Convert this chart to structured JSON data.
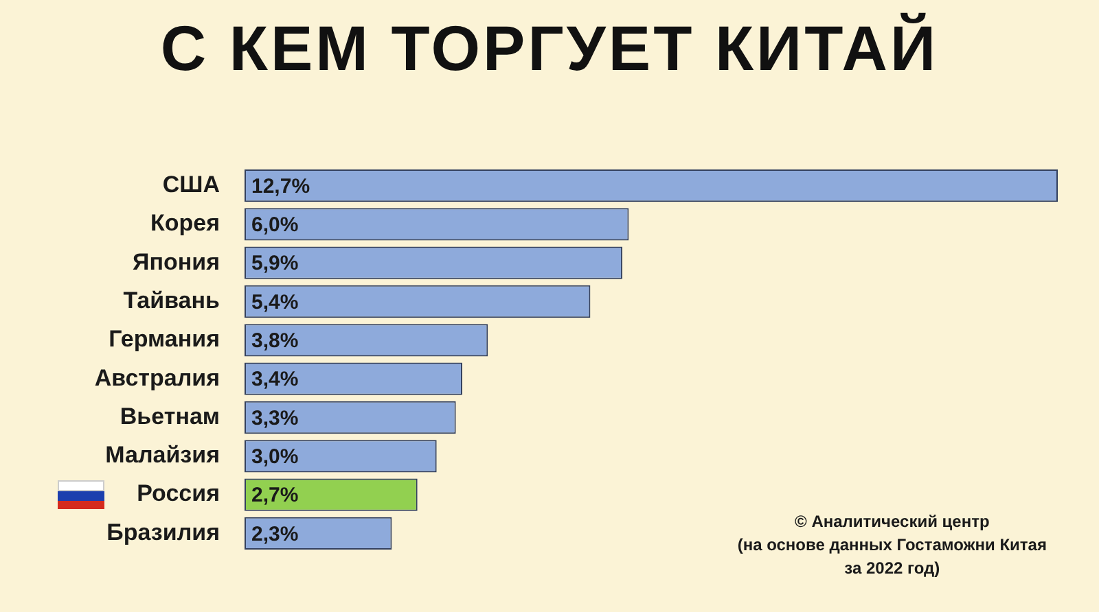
{
  "chart_data": {
    "type": "bar",
    "orientation": "horizontal",
    "title": "С КЕМ ТОРГУЕТ КИТАЙ",
    "categories": [
      "США",
      "Корея",
      "Япония",
      "Тайвань",
      "Германия",
      "Австралия",
      "Вьетнам",
      "Малайзия",
      "Россия",
      "Бразилия"
    ],
    "values": [
      12.7,
      6.0,
      5.9,
      5.4,
      3.8,
      3.4,
      3.3,
      3.0,
      2.7,
      2.3
    ],
    "colors": [
      "#8eaadb",
      "#8eaadb",
      "#8eaadb",
      "#8eaadb",
      "#8eaadb",
      "#8eaadb",
      "#8eaadb",
      "#8eaadb",
      "#92d050",
      "#8eaadb"
    ],
    "value_labels": [
      "12,7%",
      "6,0%",
      "5,9%",
      "5,4%",
      "3,8%",
      "3,4%",
      "3,3%",
      "3,0%",
      "2,7%",
      "2,3%"
    ],
    "legend": false,
    "annotations": [
      "© Аналитический центр\n(на основе данных Гостаможни Китая\nза 2022 год)"
    ]
  }
}
